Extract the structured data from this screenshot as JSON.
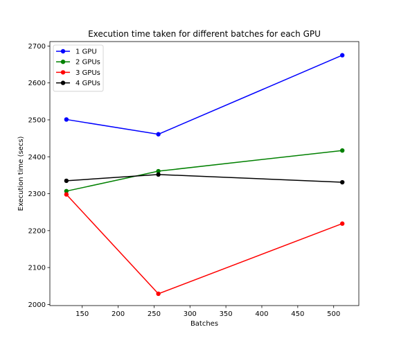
{
  "chart_data": {
    "type": "line",
    "title": "Execution time taken for different batches for each GPU",
    "xlabel": "Batches",
    "ylabel": "Execution time (secs)",
    "x": [
      128,
      256,
      512
    ],
    "xlim": [
      105,
      535
    ],
    "ylim": [
      1997,
      2712
    ],
    "xticks": [
      150,
      200,
      250,
      300,
      350,
      400,
      450,
      500
    ],
    "yticks": [
      2000,
      2100,
      2200,
      2300,
      2400,
      2500,
      2600,
      2700
    ],
    "grid": false,
    "legend_position": "upper-left",
    "series": [
      {
        "name": "1 GPU",
        "color": "#0000ff",
        "marker": "circle",
        "values": [
          2501,
          2461,
          2675
        ]
      },
      {
        "name": "2 GPUs",
        "color": "#008000",
        "marker": "circle",
        "values": [
          2307,
          2361,
          2417
        ]
      },
      {
        "name": "3 GPUs",
        "color": "#ff0000",
        "marker": "circle",
        "values": [
          2298,
          2029,
          2219
        ]
      },
      {
        "name": "4 GPUs",
        "color": "#000000",
        "marker": "circle",
        "values": [
          2335,
          2352,
          2331
        ]
      }
    ]
  }
}
